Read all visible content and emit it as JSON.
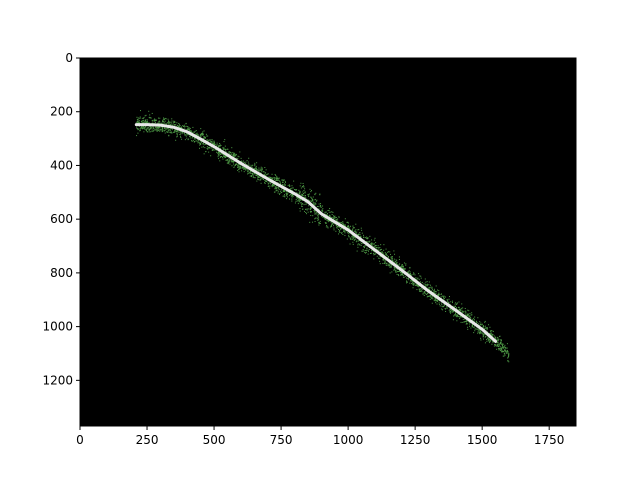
{
  "chart_data": {
    "type": "heatmap",
    "title": "",
    "xlabel": "",
    "ylabel": "",
    "xlim": [
      0,
      1850
    ],
    "ylim": [
      1370,
      0
    ],
    "x_ticks": [
      0,
      250,
      500,
      750,
      1000,
      1250,
      1500,
      1750
    ],
    "y_ticks": [
      0,
      200,
      400,
      600,
      800,
      1000,
      1200
    ],
    "x_tick_labels": [
      "0",
      "250",
      "500",
      "750",
      "1000",
      "1250",
      "1500",
      "1750"
    ],
    "y_tick_labels": [
      "0",
      "200",
      "400",
      "600",
      "800",
      "1000",
      "1200"
    ],
    "grid": false,
    "colors": {
      "background": "#000000",
      "points": "#4e9a46",
      "centerline": "#e8e8e8"
    },
    "scatter_band": {
      "x_start": 210,
      "x_end": 1600,
      "half_width": 25,
      "point_count": 3200
    },
    "centerline": {
      "x": [
        210,
        250,
        300,
        350,
        400,
        450,
        500,
        600,
        700,
        800,
        850,
        900,
        1000,
        1100,
        1200,
        1300,
        1400,
        1500,
        1550
      ],
      "y": [
        248,
        248,
        250,
        258,
        275,
        302,
        330,
        392,
        450,
        505,
        535,
        580,
        640,
        715,
        790,
        868,
        938,
        1010,
        1055
      ]
    }
  }
}
